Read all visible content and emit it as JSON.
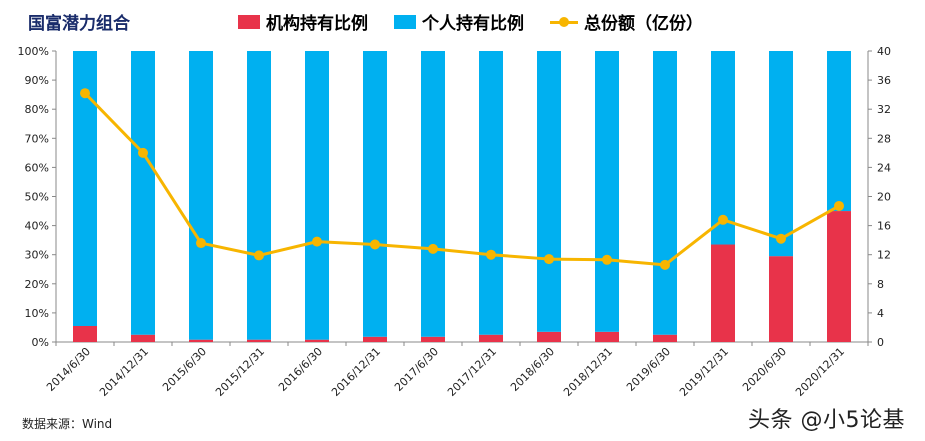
{
  "chart_data": {
    "type": "bar",
    "title": "国富潜力组合",
    "categories": [
      "2014/6/30",
      "2014/12/31",
      "2015/6/30",
      "2015/12/31",
      "2016/6/30",
      "2016/12/31",
      "2017/6/30",
      "2017/12/31",
      "2018/6/30",
      "2018/12/31",
      "2019/6/30",
      "2019/12/31",
      "2020/6/30",
      "2020/12/31"
    ],
    "series": [
      {
        "name": "机构持有比例",
        "kind": "stacked-bar",
        "color": "#e8334a",
        "values": [
          5.5,
          2.5,
          0.8,
          0.8,
          0.8,
          1.8,
          1.8,
          2.5,
          3.5,
          3.5,
          2.5,
          33.5,
          29.5,
          45.0
        ]
      },
      {
        "name": "个人持有比例",
        "kind": "stacked-bar",
        "color": "#00b0f0",
        "values": [
          94.5,
          97.5,
          99.2,
          99.2,
          99.2,
          98.2,
          98.2,
          97.5,
          96.5,
          96.5,
          97.5,
          66.5,
          70.5,
          55.0
        ]
      },
      {
        "name": "总份额（亿份）",
        "kind": "line",
        "axis": "right",
        "color": "#f7b500",
        "values": [
          34.2,
          26.0,
          13.6,
          11.9,
          13.8,
          13.4,
          12.8,
          12.0,
          11.4,
          11.3,
          10.6,
          16.8,
          14.2,
          18.7
        ]
      }
    ],
    "y_left": {
      "ylim": [
        0,
        100
      ],
      "ticks": [
        "0%",
        "10%",
        "20%",
        "30%",
        "40%",
        "50%",
        "60%",
        "70%",
        "80%",
        "90%",
        "100%"
      ]
    },
    "y_right": {
      "ylim": [
        0,
        40
      ],
      "ticks": [
        "0",
        "4",
        "8",
        "12",
        "16",
        "20",
        "24",
        "28",
        "32",
        "36",
        "40"
      ]
    },
    "grid": false,
    "legend_position": "top"
  },
  "source_text": "数据来源：Wind",
  "watermark_text": "头条 @小5论基"
}
